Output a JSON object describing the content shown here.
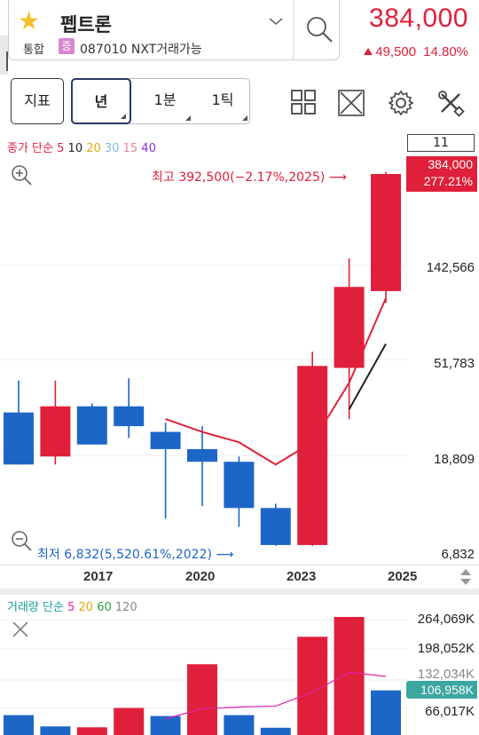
{
  "header": {
    "stock_name": "펩트론",
    "market_label": "통합",
    "market_badge": "증",
    "stock_code_text": "087010 NXT거래가능",
    "price": "384,000",
    "change_amount": "49,500",
    "change_percent": "14.80%",
    "icons": [
      "star-icon",
      "chevron-down-icon",
      "search-icon"
    ]
  },
  "toolbar": {
    "indicator_label": "지표",
    "period_tabs": [
      "년",
      "1분",
      "1틱"
    ],
    "selected_period": "년",
    "tool_icons": [
      "layout-grid-icon",
      "fullscreen-icon",
      "settings-gear-icon",
      "tools-wrench-icon"
    ]
  },
  "chart": {
    "ma_legend": {
      "prefix": "종가 단순",
      "periods": [
        {
          "label": "5",
          "color": "#e0203a"
        },
        {
          "label": "10",
          "color": "#222222"
        },
        {
          "label": "20",
          "color": "#e5a50a"
        },
        {
          "label": "30",
          "color": "#7fb9e6"
        },
        {
          "label": "15",
          "color": "#e08aa0"
        },
        {
          "label": "40",
          "color": "#8a2be2"
        }
      ]
    },
    "period_count": "11",
    "y_axis_labels": [
      "142,566",
      "51,783",
      "18,809",
      "6,832"
    ],
    "x_axis_labels": [
      "2017",
      "2020",
      "2023",
      "2025"
    ],
    "current_price_tag": "384,000",
    "current_change_tag": "277.21%",
    "high_annotation": "최고 392,500(−2.17%,2025)",
    "low_annotation": "최저 6,832(5,520.61%,2022)",
    "up_color": "#e0203a",
    "down_color": "#1d66c8",
    "icons": [
      "zoom-in-icon",
      "zoom-out-icon",
      "scroll-updown-icon"
    ]
  },
  "chart_data": {
    "type": "candlestick",
    "scale": "log",
    "ylim": [
      6832,
      384000
    ],
    "candles": [
      {
        "year": "2015",
        "open": 29000,
        "close": 16500,
        "high": 41000,
        "low": 16500
      },
      {
        "year": "2016",
        "open": 18000,
        "close": 31000,
        "high": 41000,
        "low": 16500
      },
      {
        "year": "2017",
        "open": 31000,
        "close": 20500,
        "high": 32000,
        "low": 20500
      },
      {
        "year": "2018",
        "open": 31000,
        "close": 25000,
        "high": 42000,
        "low": 22000
      },
      {
        "year": "2019",
        "open": 23500,
        "close": 19500,
        "high": 26000,
        "low": 9200
      },
      {
        "year": "2020",
        "open": 19500,
        "close": 17000,
        "high": 25000,
        "low": 10500
      },
      {
        "year": "2021",
        "open": 17000,
        "close": 10300,
        "high": 18000,
        "low": 8400
      },
      {
        "year": "2022",
        "open": 10300,
        "close": 6900,
        "high": 10800,
        "low": 6832
      },
      {
        "year": "2023",
        "open": 6900,
        "close": 48000,
        "high": 56000,
        "low": 6832
      },
      {
        "year": "2024",
        "open": 47000,
        "close": 113000,
        "high": 154000,
        "low": 27000
      },
      {
        "year": "2025",
        "open": 108000,
        "close": 384000,
        "high": 392500,
        "low": 95000
      }
    ],
    "ma5": [
      {
        "year": "2019",
        "value": 27000
      },
      {
        "year": "2020",
        "value": 23500
      },
      {
        "year": "2021",
        "value": 21000
      },
      {
        "year": "2022",
        "value": 16500
      },
      {
        "year": "2023",
        "value": 21000
      },
      {
        "year": "2024",
        "value": 40000
      },
      {
        "year": "2025",
        "value": 100000
      }
    ],
    "ma10": [
      {
        "year": "2024",
        "value": 30000
      },
      {
        "year": "2025",
        "value": 61000
      }
    ]
  },
  "volume": {
    "legend_prefix": "거래량 단순",
    "periods": [
      {
        "label": "5",
        "color": "#e020a8"
      },
      {
        "label": "20",
        "color": "#e5a50a"
      },
      {
        "label": "60",
        "color": "#2e9e3e"
      },
      {
        "label": "120",
        "color": "#8a8a8a"
      }
    ],
    "y_axis_labels": [
      "264,069K",
      "198,052K",
      "132,034K",
      "66,017K"
    ],
    "current_tag": "106,958K",
    "bars_k": [
      {
        "year": "2015",
        "value": 52000,
        "up": false
      },
      {
        "year": "2016",
        "value": 27000,
        "up": false
      },
      {
        "year": "2017",
        "value": 25000,
        "up": true
      },
      {
        "year": "2018",
        "value": 68000,
        "up": true
      },
      {
        "year": "2019",
        "value": 50000,
        "up": false
      },
      {
        "year": "2020",
        "value": 165000,
        "up": true
      },
      {
        "year": "2021",
        "value": 52000,
        "up": false
      },
      {
        "year": "2022",
        "value": 24000,
        "up": false
      },
      {
        "year": "2023",
        "value": 226000,
        "up": true
      },
      {
        "year": "2024",
        "value": 270000,
        "up": true
      },
      {
        "year": "2025",
        "value": 106958,
        "up": false
      }
    ],
    "vol_ma5_k": [
      {
        "year": "2019",
        "value": 44000
      },
      {
        "year": "2020",
        "value": 66000
      },
      {
        "year": "2021",
        "value": 70000
      },
      {
        "year": "2022",
        "value": 72000
      },
      {
        "year": "2023",
        "value": 103000
      },
      {
        "year": "2024",
        "value": 147000
      },
      {
        "year": "2025",
        "value": 138000
      }
    ]
  }
}
